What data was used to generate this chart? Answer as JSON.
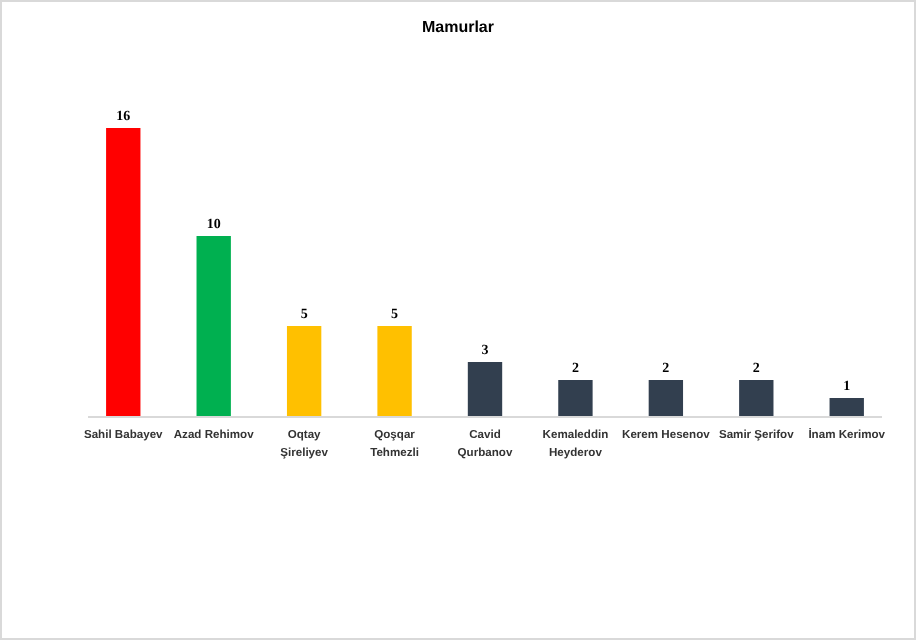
{
  "chart_data": {
    "type": "bar",
    "title": "Mamurlar",
    "categories": [
      "Sahil Babayev",
      "Azad Rehimov",
      "Oqtay Şireliyev",
      "Qoşqar Tehmezli",
      "Cavid Qurbanov",
      "Kemaleddin Heyderov",
      "Kerem Hesenov",
      "Samir Şerifov",
      "İnam Kerimov"
    ],
    "values": [
      16,
      10,
      5,
      5,
      3,
      2,
      2,
      2,
      1
    ],
    "colors": [
      "#ff0000",
      "#00b050",
      "#ffc000",
      "#ffc000",
      "#323f4f",
      "#323f4f",
      "#323f4f",
      "#323f4f",
      "#323f4f"
    ],
    "data_labels": true
  }
}
